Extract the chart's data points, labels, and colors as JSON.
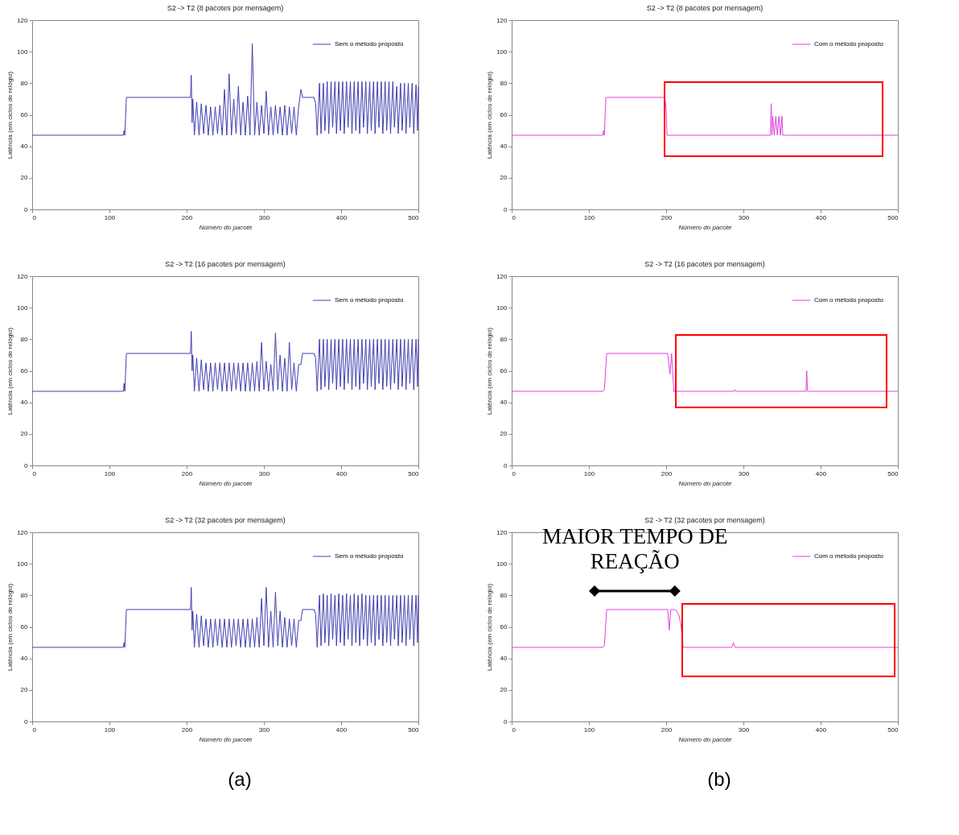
{
  "chart_data": [
    {
      "type": "line",
      "title": "S2 -> T2 (8 pacotes por mensagem)",
      "xlabel": "Número do pacote",
      "ylabel": "Latência (em ciclos de relógio)",
      "xlim": [
        0,
        500
      ],
      "ylim": [
        0,
        120
      ],
      "xticks": [
        0,
        100,
        200,
        300,
        400,
        500
      ],
      "yticks": [
        0,
        20,
        40,
        60,
        80,
        100,
        120
      ],
      "grid": false,
      "legend": "top right",
      "x": [
        0,
        118,
        119,
        120,
        122,
        205,
        206,
        207,
        208,
        210,
        213,
        216,
        219,
        222,
        225,
        228,
        231,
        234,
        237,
        240,
        243,
        246,
        249,
        252,
        255,
        258,
        261,
        264,
        267,
        270,
        273,
        276,
        279,
        282,
        285,
        288,
        291,
        294,
        297,
        300,
        303,
        306,
        309,
        312,
        315,
        318,
        321,
        324,
        327,
        330,
        333,
        336,
        339,
        342,
        345,
        348,
        350,
        365,
        367,
        369,
        372,
        374,
        377,
        379,
        382,
        384,
        387,
        389,
        392,
        394,
        397,
        399,
        402,
        404,
        407,
        409,
        412,
        414,
        417,
        419,
        422,
        424,
        427,
        429,
        432,
        434,
        437,
        439,
        442,
        444,
        447,
        449,
        452,
        454,
        457,
        459,
        462,
        464,
        467,
        469,
        472,
        474,
        477,
        479,
        482,
        484,
        487,
        489,
        492,
        494,
        497,
        499,
        500
      ],
      "series": [
        {
          "name": "Sem o método proposto",
          "color": "#4040b0",
          "values": [
            47,
            47,
            50,
            47,
            71,
            71,
            85,
            55,
            70,
            47,
            68,
            47,
            67,
            48,
            66,
            47,
            65,
            47,
            65,
            48,
            66,
            47,
            76,
            47,
            86,
            47,
            70,
            48,
            78,
            47,
            68,
            47,
            72,
            47,
            105,
            47,
            68,
            47,
            66,
            48,
            75,
            47,
            65,
            47,
            66,
            48,
            65,
            47,
            66,
            47,
            65,
            48,
            65,
            47,
            65,
            76,
            71,
            71,
            67,
            47,
            80,
            48,
            80,
            50,
            81,
            48,
            81,
            52,
            81,
            48,
            81,
            50,
            81,
            48,
            81,
            52,
            81,
            48,
            81,
            50,
            81,
            48,
            81,
            52,
            81,
            48,
            81,
            50,
            81,
            48,
            81,
            52,
            81,
            48,
            81,
            50,
            81,
            48,
            81,
            52,
            78,
            48,
            80,
            50,
            80,
            48,
            80,
            52,
            80,
            48,
            79,
            50,
            78
          ]
        }
      ]
    },
    {
      "type": "line",
      "title": "S2 -> T2 (8 pacotes por mensagem)",
      "xlabel": "Número do pacote",
      "ylabel": "Latência (em ciclos de relógio)",
      "xlim": [
        0,
        500
      ],
      "ylim": [
        0,
        120
      ],
      "xticks": [
        0,
        100,
        200,
        300,
        400,
        500
      ],
      "yticks": [
        0,
        20,
        40,
        60,
        80,
        100,
        120
      ],
      "grid": false,
      "legend": "top right",
      "x": [
        0,
        118,
        119,
        120,
        122,
        198,
        200,
        201,
        202,
        335,
        336,
        337,
        338,
        340,
        342,
        344,
        346,
        348,
        350,
        351,
        500
      ],
      "series": [
        {
          "name": "Com o método proposto",
          "color": "#e040e0",
          "values": [
            47,
            47,
            50,
            47,
            71,
            71,
            65,
            47,
            47,
            47,
            67,
            47,
            59,
            47,
            59,
            47,
            59,
            47,
            59,
            47,
            47
          ]
        }
      ]
    },
    {
      "type": "line",
      "title": "S2 -> T2 (16 pacotes por mensagem)",
      "xlabel": "Número do pacote",
      "ylabel": "Latência (em ciclos de relógio)",
      "xlim": [
        0,
        500
      ],
      "ylim": [
        0,
        120
      ],
      "xticks": [
        0,
        100,
        200,
        300,
        400,
        500
      ],
      "yticks": [
        0,
        20,
        40,
        60,
        80,
        100,
        120
      ],
      "grid": false,
      "legend": "top right",
      "x": [
        0,
        118,
        119,
        120,
        122,
        205,
        206,
        207,
        208,
        210,
        213,
        216,
        219,
        222,
        225,
        228,
        231,
        234,
        237,
        240,
        243,
        246,
        249,
        252,
        255,
        258,
        261,
        264,
        267,
        270,
        273,
        276,
        279,
        282,
        285,
        288,
        291,
        294,
        297,
        300,
        303,
        306,
        309,
        312,
        315,
        318,
        321,
        324,
        327,
        330,
        333,
        336,
        339,
        342,
        345,
        348,
        350,
        365,
        367,
        369,
        372,
        374,
        377,
        379,
        382,
        384,
        387,
        389,
        392,
        394,
        397,
        399,
        402,
        404,
        407,
        409,
        412,
        414,
        417,
        419,
        422,
        424,
        427,
        429,
        432,
        434,
        437,
        439,
        442,
        444,
        447,
        449,
        452,
        454,
        457,
        459,
        462,
        464,
        467,
        469,
        472,
        474,
        477,
        479,
        482,
        484,
        487,
        489,
        492,
        494,
        497,
        499,
        500
      ],
      "series": [
        {
          "name": "Sem o método proposto",
          "color": "#4040b0",
          "values": [
            47,
            47,
            52,
            47,
            71,
            71,
            85,
            60,
            70,
            47,
            68,
            47,
            67,
            48,
            65,
            47,
            65,
            47,
            65,
            48,
            65,
            47,
            65,
            47,
            65,
            47,
            65,
            48,
            65,
            47,
            65,
            47,
            65,
            47,
            65,
            47,
            66,
            47,
            78,
            48,
            66,
            47,
            64,
            47,
            84,
            48,
            70,
            47,
            68,
            47,
            78,
            48,
            65,
            47,
            64,
            64,
            71,
            71,
            68,
            47,
            80,
            48,
            80,
            50,
            80,
            48,
            80,
            52,
            80,
            48,
            80,
            50,
            80,
            48,
            80,
            52,
            80,
            48,
            80,
            50,
            80,
            48,
            80,
            52,
            80,
            48,
            80,
            50,
            80,
            48,
            80,
            52,
            80,
            48,
            80,
            50,
            80,
            48,
            80,
            52,
            80,
            48,
            80,
            50,
            80,
            48,
            80,
            52,
            80,
            48,
            80,
            50,
            80
          ]
        }
      ]
    },
    {
      "type": "line",
      "title": "S2 -> T2 (16 pacotes por mensagem)",
      "xlabel": "Número do pacote",
      "ylabel": "Latência (em ciclos de relógio)",
      "xlim": [
        0,
        500
      ],
      "ylim": [
        0,
        120
      ],
      "xticks": [
        0,
        100,
        200,
        300,
        400,
        500
      ],
      "yticks": [
        0,
        20,
        40,
        60,
        80,
        100,
        120
      ],
      "grid": false,
      "legend": "top right",
      "x": [
        0,
        118,
        120,
        123,
        202,
        205,
        207,
        210,
        288,
        289,
        290,
        381,
        382,
        383,
        500
      ],
      "series": [
        {
          "name": "Com o método proposto",
          "color": "#e040e0",
          "values": [
            47,
            47,
            48,
            71,
            71,
            58,
            71,
            47,
            47,
            48,
            47,
            47,
            60,
            47,
            47
          ]
        }
      ]
    },
    {
      "type": "line",
      "title": "S2 -> T2 (32 pacotes por mensagem)",
      "xlabel": "Número do pacote",
      "ylabel": "Latência (em ciclos de relógio)",
      "xlim": [
        0,
        500
      ],
      "ylim": [
        0,
        120
      ],
      "xticks": [
        0,
        100,
        200,
        300,
        400,
        500
      ],
      "yticks": [
        0,
        20,
        40,
        60,
        80,
        100,
        120
      ],
      "grid": false,
      "legend": "top right",
      "annotations": [
        "(a)"
      ],
      "x": [
        0,
        118,
        119,
        120,
        122,
        205,
        206,
        207,
        208,
        210,
        213,
        216,
        219,
        222,
        225,
        228,
        231,
        234,
        237,
        240,
        243,
        246,
        249,
        252,
        255,
        258,
        261,
        264,
        267,
        270,
        273,
        276,
        279,
        282,
        285,
        288,
        291,
        294,
        297,
        300,
        303,
        306,
        309,
        312,
        315,
        318,
        321,
        324,
        327,
        330,
        333,
        336,
        339,
        342,
        345,
        348,
        350,
        365,
        367,
        369,
        372,
        374,
        377,
        379,
        382,
        384,
        387,
        389,
        392,
        394,
        397,
        399,
        402,
        404,
        407,
        409,
        412,
        414,
        417,
        419,
        422,
        424,
        427,
        429,
        432,
        434,
        437,
        439,
        442,
        444,
        447,
        449,
        452,
        454,
        457,
        459,
        462,
        464,
        467,
        469,
        472,
        474,
        477,
        479,
        482,
        484,
        487,
        489,
        492,
        494,
        497,
        499,
        500
      ],
      "series": [
        {
          "name": "Sem o método proposto",
          "color": "#4040b0",
          "values": [
            47,
            47,
            50,
            47,
            71,
            71,
            85,
            58,
            70,
            47,
            68,
            47,
            67,
            48,
            65,
            47,
            65,
            47,
            65,
            48,
            65,
            47,
            65,
            47,
            65,
            47,
            65,
            48,
            65,
            47,
            65,
            47,
            65,
            47,
            65,
            47,
            66,
            47,
            78,
            48,
            85,
            47,
            70,
            47,
            82,
            48,
            70,
            47,
            66,
            47,
            65,
            48,
            65,
            47,
            64,
            64,
            71,
            71,
            68,
            47,
            80,
            48,
            81,
            50,
            80,
            48,
            81,
            52,
            80,
            48,
            81,
            50,
            80,
            48,
            81,
            52,
            80,
            48,
            81,
            50,
            80,
            48,
            81,
            52,
            80,
            48,
            80,
            50,
            80,
            48,
            80,
            52,
            80,
            48,
            80,
            50,
            80,
            48,
            80,
            52,
            80,
            48,
            80,
            50,
            80,
            48,
            80,
            52,
            80,
            48,
            80,
            50,
            80
          ]
        }
      ]
    },
    {
      "type": "line",
      "title": "S2 -> T2 (32 pacotes por mensagem)",
      "xlabel": "Número do pacote",
      "ylabel": "Latência (em ciclos de relógio)",
      "xlim": [
        0,
        500
      ],
      "ylim": [
        0,
        120
      ],
      "xticks": [
        0,
        100,
        200,
        300,
        400,
        500
      ],
      "yticks": [
        0,
        20,
        40,
        60,
        80,
        100,
        120
      ],
      "grid": false,
      "legend": "top right",
      "annotations": [
        {
          "text": "MAIOR TEMPO DE REAÇÃO",
          "x": 168,
          "y": 71
        },
        "(b)"
      ],
      "x": [
        0,
        118,
        120,
        123,
        202,
        204,
        206,
        212,
        216,
        219,
        222,
        285,
        287,
        289,
        500
      ],
      "series": [
        {
          "name": "Com o método proposto",
          "color": "#e040e0",
          "values": [
            47,
            47,
            48,
            71,
            71,
            58,
            71,
            71,
            68,
            62,
            47,
            47,
            50,
            47,
            47
          ]
        }
      ]
    }
  ]
}
